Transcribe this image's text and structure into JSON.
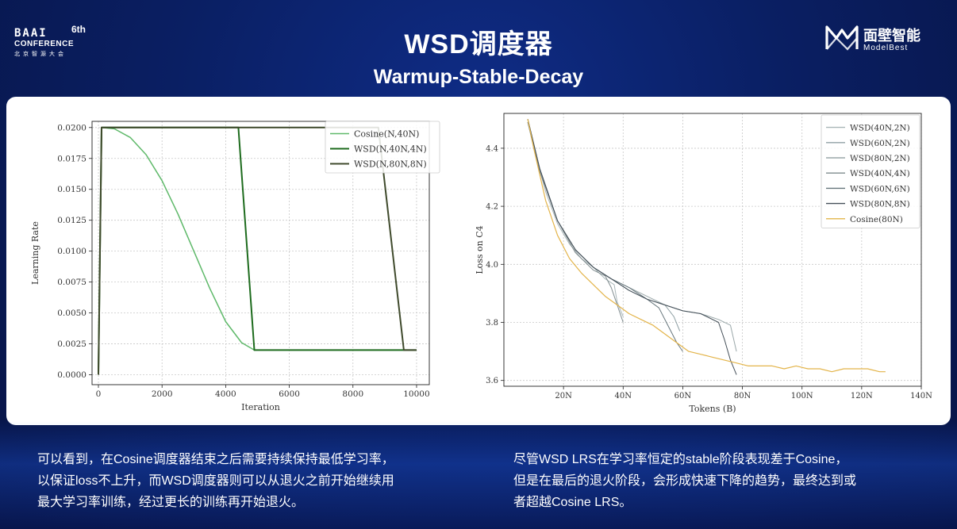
{
  "header": {
    "logo_left": {
      "line1": "BAAI",
      "line2": "CONFERENCE",
      "line3": "北京智源大会",
      "edition": "6th"
    },
    "title": "WSD调度器",
    "subtitle": "Warmup-Stable-Decay",
    "logo_right": {
      "cn": "面壁智能",
      "en": "ModelBest"
    }
  },
  "chart_data": [
    {
      "type": "line",
      "title": "",
      "xlabel": "Iteration",
      "ylabel": "Learning Rate",
      "xlim": [
        -200,
        10400
      ],
      "ylim": [
        -0.0008,
        0.0205
      ],
      "xticks": [
        0,
        2000,
        4000,
        6000,
        8000,
        10000
      ],
      "xtick_labels": [
        "0",
        "2000",
        "4000",
        "6000",
        "8000",
        "10000"
      ],
      "yticks": [
        0.0,
        0.0025,
        0.005,
        0.0075,
        0.01,
        0.0125,
        0.015,
        0.0175,
        0.02
      ],
      "ytick_labels": [
        "0.0000",
        "0.0025",
        "0.0050",
        "0.0075",
        "0.0100",
        "0.0125",
        "0.0150",
        "0.0175",
        "0.0200"
      ],
      "grid": true,
      "legend_position": "top-right",
      "series": [
        {
          "name": "Cosine(N,40N)",
          "color": "#5fb96a",
          "width": 1.5,
          "x": [
            0,
            100,
            500,
            1000,
            1500,
            2000,
            2500,
            3000,
            3500,
            4000,
            4500,
            4900,
            10000
          ],
          "y": [
            0.0,
            0.02,
            0.0199,
            0.0192,
            0.0178,
            0.0157,
            0.013,
            0.01,
            0.007,
            0.0043,
            0.0026,
            0.002,
            0.002
          ]
        },
        {
          "name": "WSD(N,40N,4N)",
          "color": "#1d6b1d",
          "width": 2,
          "x": [
            0,
            100,
            4400,
            4900,
            10000
          ],
          "y": [
            0.0,
            0.02,
            0.02,
            0.002,
            0.002
          ]
        },
        {
          "name": "WSD(N,80N,8N)",
          "color": "#3f4a2c",
          "width": 2,
          "x": [
            0,
            100,
            8800,
            9600,
            10000
          ],
          "y": [
            0.0,
            0.02,
            0.02,
            0.002,
            0.002
          ]
        }
      ]
    },
    {
      "type": "line",
      "title": "",
      "xlabel": "Tokens (B)",
      "ylabel": "Loss on C4",
      "xlim": [
        0,
        140
      ],
      "ylim": [
        3.58,
        4.52
      ],
      "xticks": [
        20,
        40,
        60,
        80,
        100,
        120,
        140
      ],
      "xtick_labels": [
        "20N",
        "40N",
        "60N",
        "80N",
        "100N",
        "120N",
        "140N"
      ],
      "yticks": [
        3.6,
        3.8,
        4.0,
        4.2,
        4.4
      ],
      "ytick_labels": [
        "3.6",
        "3.8",
        "4.0",
        "4.2",
        "4.4"
      ],
      "grid": true,
      "legend_position": "top-right",
      "series": [
        {
          "name": "WSD(40N,2N)",
          "color": "#a9b6b8",
          "width": 1,
          "x": [
            8,
            10,
            14,
            18,
            22,
            26,
            30,
            34,
            37,
            38,
            40
          ],
          "y": [
            4.49,
            4.4,
            4.25,
            4.14,
            4.07,
            4.02,
            3.99,
            3.95,
            3.93,
            3.87,
            3.82
          ]
        },
        {
          "name": "WSD(60N,2N)",
          "color": "#8fa0a4",
          "width": 1,
          "x": [
            8,
            12,
            18,
            24,
            30,
            36,
            42,
            48,
            54,
            57,
            59
          ],
          "y": [
            4.49,
            4.33,
            4.15,
            4.05,
            3.99,
            3.95,
            3.91,
            3.88,
            3.86,
            3.82,
            3.77
          ]
        },
        {
          "name": "WSD(80N,2N)",
          "color": "#9aa7a9",
          "width": 1,
          "x": [
            8,
            12,
            18,
            24,
            30,
            36,
            42,
            48,
            54,
            60,
            66,
            72,
            76,
            78
          ],
          "y": [
            4.5,
            4.33,
            4.15,
            4.05,
            3.99,
            3.95,
            3.92,
            3.89,
            3.86,
            3.84,
            3.83,
            3.81,
            3.79,
            3.7
          ]
        },
        {
          "name": "WSD(40N,4N)",
          "color": "#7f8b8e",
          "width": 1,
          "x": [
            8,
            12,
            18,
            24,
            30,
            34,
            36,
            38,
            40
          ],
          "y": [
            4.49,
            4.32,
            4.15,
            4.04,
            3.98,
            3.96,
            3.92,
            3.86,
            3.8
          ]
        },
        {
          "name": "WSD(60N,6N)",
          "color": "#66757b",
          "width": 1,
          "x": [
            8,
            12,
            18,
            24,
            30,
            36,
            42,
            48,
            52,
            55,
            58,
            60
          ],
          "y": [
            4.5,
            4.33,
            4.15,
            4.05,
            3.99,
            3.95,
            3.92,
            3.88,
            3.85,
            3.79,
            3.73,
            3.7
          ]
        },
        {
          "name": "WSD(80N,8N)",
          "color": "#444f58",
          "width": 1,
          "x": [
            8,
            12,
            18,
            24,
            30,
            36,
            42,
            48,
            54,
            60,
            66,
            72,
            74,
            76,
            78
          ],
          "y": [
            4.5,
            4.33,
            4.15,
            4.05,
            3.99,
            3.95,
            3.91,
            3.88,
            3.86,
            3.84,
            3.83,
            3.8,
            3.74,
            3.67,
            3.62
          ]
        },
        {
          "name": "Cosine(80N)",
          "color": "#e3b44a",
          "width": 1.2,
          "x": [
            8,
            10,
            14,
            18,
            22,
            26,
            30,
            34,
            38,
            42,
            46,
            50,
            54,
            58,
            62,
            66,
            70,
            74,
            78,
            82,
            86,
            90,
            94,
            98,
            102,
            106,
            110,
            114,
            118,
            122,
            126,
            128
          ],
          "y": [
            4.5,
            4.4,
            4.22,
            4.1,
            4.02,
            3.97,
            3.93,
            3.89,
            3.86,
            3.83,
            3.81,
            3.79,
            3.76,
            3.73,
            3.7,
            3.69,
            3.68,
            3.67,
            3.66,
            3.65,
            3.65,
            3.65,
            3.64,
            3.65,
            3.64,
            3.64,
            3.63,
            3.64,
            3.64,
            3.64,
            3.63,
            3.63
          ]
        }
      ]
    }
  ],
  "captions": {
    "left": [
      "可以看到，在Cosine调度器结束之后需要持续保持最低学习率，",
      "以保证loss不上升，而WSD调度器则可以从退火之前开始继续用",
      "最大学习率训练，经过更长的训练再开始退火。"
    ],
    "right": [
      "尽管WSD LRS在学习率恒定的stable阶段表现差于Cosine，",
      "但是在最后的退火阶段，会形成快速下降的趋势，最终达到或",
      "者超越Cosine LRS。"
    ]
  }
}
